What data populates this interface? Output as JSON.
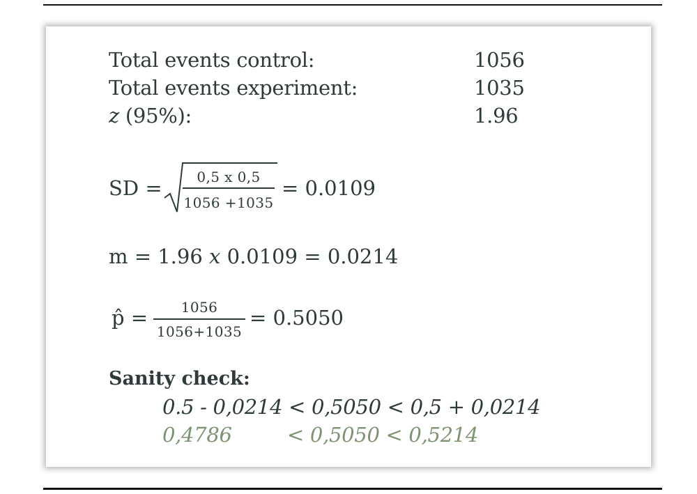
{
  "summary": {
    "rows": [
      {
        "label": "Total events control:",
        "value": "1056"
      },
      {
        "label": "Total events experiment:",
        "value": "1035"
      },
      {
        "label_var": "z",
        "label_rest": " (95%):",
        "value": "1.96"
      }
    ]
  },
  "sd_formula": {
    "lhs": "SD =",
    "numerator": "0,5 x 0,5",
    "denominator": "1056 +1035",
    "result": "=  0.0109"
  },
  "m_formula": {
    "text": "m = 1.96 ",
    "op": "x",
    "rest": " 0.0109 = 0.0214"
  },
  "p_formula": {
    "lhs": "p̂ =",
    "numerator": "1056",
    "denominator": "1056+1035",
    "result": "=  0.5050"
  },
  "sanity": {
    "title": "Sanity check:",
    "line1": "0.5 -  0,0214 < 0,5050 < 0,5 + 0,0214",
    "line2_left": "0,4786",
    "line2_right": "<  0,5050 < 0,5214"
  },
  "colors": {
    "text": "#2f3a3b",
    "green": "#7e9372"
  }
}
